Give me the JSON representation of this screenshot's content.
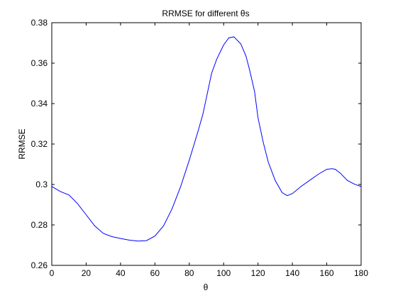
{
  "chart_data": {
    "type": "line",
    "title": "RRMSE for different θs",
    "xlabel": "θ",
    "ylabel": "RRMSE",
    "xlim": [
      0,
      180
    ],
    "ylim": [
      0.26,
      0.38
    ],
    "xticks": [
      0,
      20,
      40,
      60,
      80,
      100,
      120,
      140,
      160,
      180
    ],
    "xtick_labels": [
      "0",
      "20",
      "40",
      "60",
      "80",
      "100",
      "120",
      "140",
      "160",
      "180"
    ],
    "yticks": [
      0.26,
      0.28,
      0.3,
      0.32,
      0.34,
      0.36,
      0.38
    ],
    "ytick_labels": [
      "0.26",
      "0.28",
      "0.3",
      "0.32",
      "0.34",
      "0.36",
      "0.38"
    ],
    "grid": false,
    "series": [
      {
        "color": "#0000ff",
        "x": [
          0,
          5,
          10,
          15,
          20,
          25,
          30,
          35,
          40,
          45,
          50,
          55,
          60,
          65,
          70,
          75,
          80,
          85,
          88,
          90,
          93,
          96,
          100,
          103,
          106,
          110,
          113,
          115,
          118,
          120,
          123,
          126,
          130,
          134,
          137,
          140,
          145,
          150,
          155,
          160,
          163,
          165,
          168,
          172,
          176,
          180
        ],
        "y": [
          0.299,
          0.2965,
          0.2948,
          0.2905,
          0.285,
          0.2795,
          0.2758,
          0.2742,
          0.2733,
          0.2725,
          0.272,
          0.2722,
          0.2745,
          0.2795,
          0.288,
          0.299,
          0.312,
          0.326,
          0.335,
          0.343,
          0.355,
          0.362,
          0.369,
          0.3725,
          0.373,
          0.3695,
          0.3635,
          0.357,
          0.346,
          0.333,
          0.321,
          0.311,
          0.302,
          0.296,
          0.2945,
          0.2955,
          0.299,
          0.302,
          0.305,
          0.3075,
          0.3078,
          0.3075,
          0.3055,
          0.302,
          0.3002,
          0.299
        ]
      }
    ]
  }
}
